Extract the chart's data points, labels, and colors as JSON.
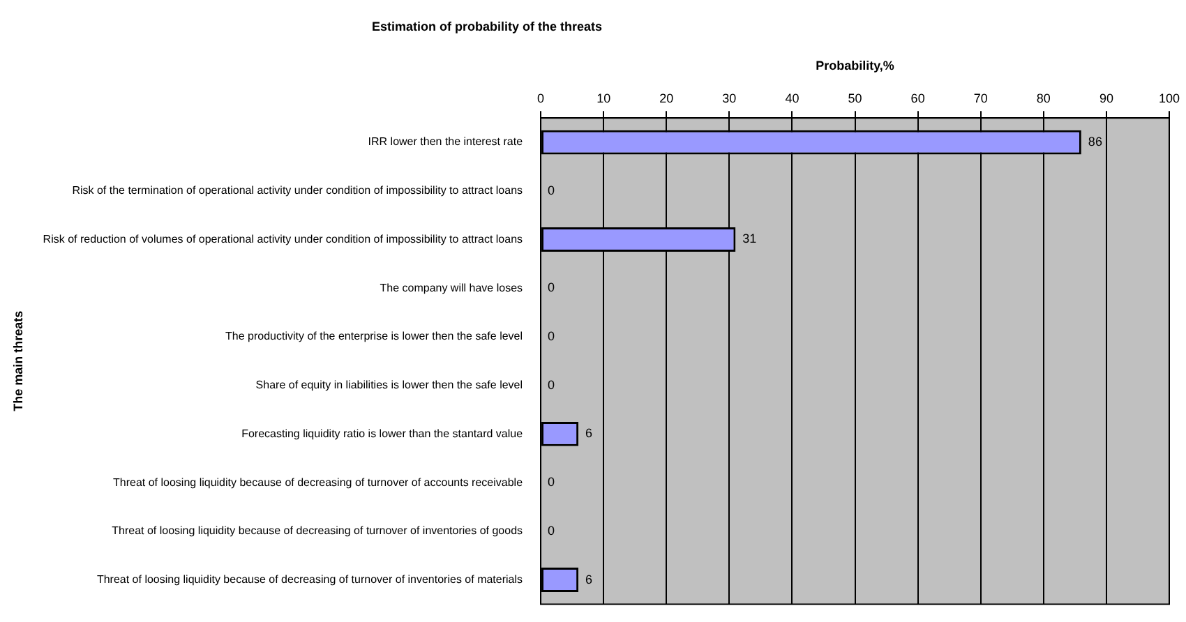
{
  "chart_data": {
    "type": "bar",
    "orientation": "horizontal",
    "title": "Estimation of probability of the threats",
    "xlabel": "Probability,%",
    "ylabel": "The main threats",
    "categories": [
      "IRR lower then the interest rate",
      "Risk of the termination of operational activity under condition of impossibility to attract loans",
      "Risk of reduction of volumes of operational activity under condition of impossibility to attract loans",
      "The company will have loses",
      "The productivity of the enterprise is lower then the safe level",
      "Share of equity in liabilities is lower then the safe level",
      "Forecasting liquidity ratio is lower than the stantard value",
      "Threat of loosing liquidity because of decreasing of turnover of accounts receivable",
      "Threat of loosing liquidity because of decreasing of turnover of inventories of goods",
      "Threat of loosing liquidity because of decreasing of turnover of inventories of materials"
    ],
    "values": [
      86,
      0,
      31,
      0,
      0,
      0,
      6,
      0,
      0,
      6
    ],
    "color": "#9999ff",
    "xlim": [
      0,
      100
    ],
    "xticks": [
      0,
      10,
      20,
      30,
      40,
      50,
      60,
      70,
      80,
      90,
      100
    ],
    "grid": "x",
    "data_labels": true,
    "legend": false
  }
}
